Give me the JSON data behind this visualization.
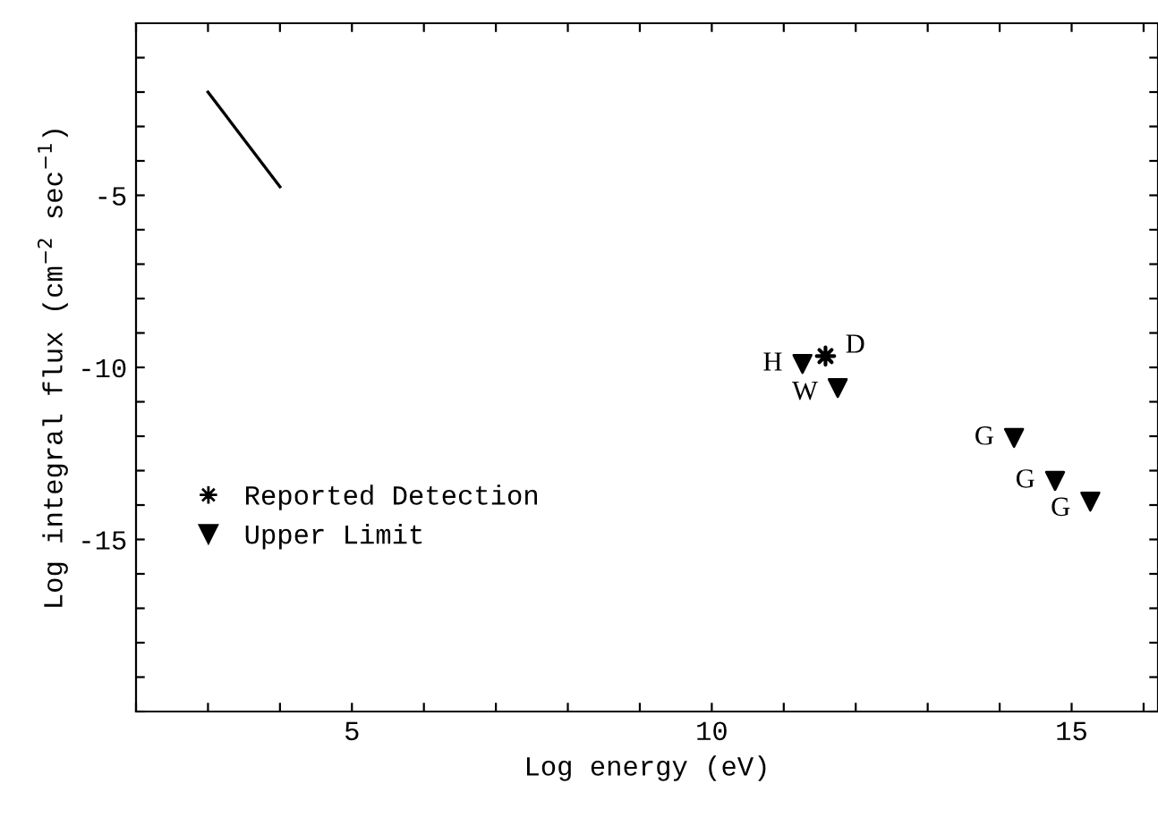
{
  "chart_data": {
    "type": "scatter",
    "xlabel": "Log energy (eV)",
    "ylabel": "Log integral flux (cm$^{−2}$ sec$^{−1}$)",
    "xlim": [
      2,
      16.2
    ],
    "ylim": [
      -20,
      0
    ],
    "xticks": [
      {
        "value": 2,
        "label": null
      },
      {
        "value": 3,
        "label": null
      },
      {
        "value": 4,
        "label": null
      },
      5,
      {
        "value": 6,
        "label": null
      },
      {
        "value": 7,
        "label": null
      },
      {
        "value": 8,
        "label": null
      },
      {
        "value": 9,
        "label": null
      },
      10,
      {
        "value": 11,
        "label": null
      },
      {
        "value": 12,
        "label": null
      },
      {
        "value": 13,
        "label": null
      },
      {
        "value": 14,
        "label": null
      },
      15,
      {
        "value": 16,
        "label": null
      }
    ],
    "yticks": [
      {
        "value": -20,
        "label": null
      },
      {
        "value": -19,
        "label": null
      },
      {
        "value": -18,
        "label": null
      },
      {
        "value": -17,
        "label": null
      },
      {
        "value": -16,
        "label": null
      },
      -15,
      {
        "value": -14,
        "label": null
      },
      {
        "value": -13,
        "label": null
      },
      {
        "value": -12,
        "label": null
      },
      {
        "value": -11,
        "label": null
      },
      -10,
      {
        "value": -9,
        "label": null
      },
      {
        "value": -8,
        "label": null
      },
      {
        "value": -7,
        "label": null
      },
      {
        "value": -6,
        "label": null
      },
      -5,
      {
        "value": -4,
        "label": null
      },
      {
        "value": -3,
        "label": null
      },
      {
        "value": -2,
        "label": null
      },
      {
        "value": -1,
        "label": null
      }
    ],
    "grid": false,
    "legend": "bottom left",
    "series": [
      {
        "type": "line",
        "color": "#000000",
        "x": [
          3,
          4
        ],
        "values": [
          -2,
          -4.75
        ],
        "marker": "none",
        "line_style": "solid"
      },
      {
        "name": "Reported Detection",
        "color": "#000000",
        "marker": "star",
        "x": [
          11.58
        ],
        "values": [
          -9.67
        ]
      },
      {
        "name": "Upper Limit",
        "color": "#000000",
        "marker": "triangle",
        "x": [
          11.26,
          11.75,
          14.2,
          14.77,
          15.26
        ],
        "values": [
          -9.9,
          -10.6,
          -12.05,
          -13.3,
          -13.9
        ]
      }
    ],
    "annotations": [
      {
        "text": "H",
        "x": 11.26,
        "y": -9.9
      },
      {
        "text": "D",
        "x": 11.58,
        "y": -9.67
      },
      {
        "text": "W",
        "x": 11.75,
        "y": -10.6
      },
      {
        "text": "G",
        "x": 14.2,
        "y": -12.05
      },
      {
        "text": "G",
        "x": 14.77,
        "y": -13.3
      },
      {
        "text": "G",
        "x": 15.26,
        "y": -13.9
      }
    ]
  }
}
